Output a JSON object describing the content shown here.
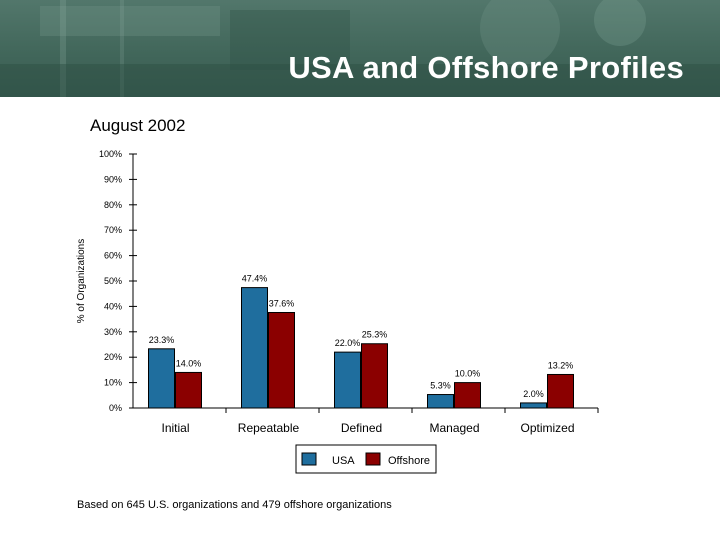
{
  "slide": {
    "title": "USA and Offshore Profiles",
    "subtitle": "August 2002",
    "footnote": "Based on 645 U.S. organizations and 479 offshore organizations"
  },
  "colors": {
    "banner": "#3f6458",
    "usa": "#1f6e9e",
    "offshore": "#8b0000"
  },
  "chart_data": {
    "type": "bar",
    "title": "August 2002",
    "xlabel": "",
    "ylabel": "% of Organizations",
    "ylim": [
      0,
      100
    ],
    "yticks": [
      "0%",
      "10%",
      "20%",
      "30%",
      "40%",
      "50%",
      "60%",
      "70%",
      "80%",
      "90%",
      "100%"
    ],
    "categories": [
      "Initial",
      "Repeatable",
      "Defined",
      "Managed",
      "Optimized"
    ],
    "series": [
      {
        "name": "USA",
        "values": [
          23.3,
          47.4,
          22.0,
          5.3,
          2.0
        ],
        "labels": [
          "23.3%",
          "47.4%",
          "22.0%",
          "5.3%",
          "2.0%"
        ]
      },
      {
        "name": "Offshore",
        "values": [
          14.0,
          37.6,
          25.3,
          10.0,
          13.2
        ],
        "labels": [
          "14.0%",
          "37.6%",
          "25.3%",
          "10.0%",
          "13.2%"
        ]
      }
    ],
    "legend": [
      "USA",
      "Offshore"
    ],
    "legend_position": "bottom-center"
  }
}
